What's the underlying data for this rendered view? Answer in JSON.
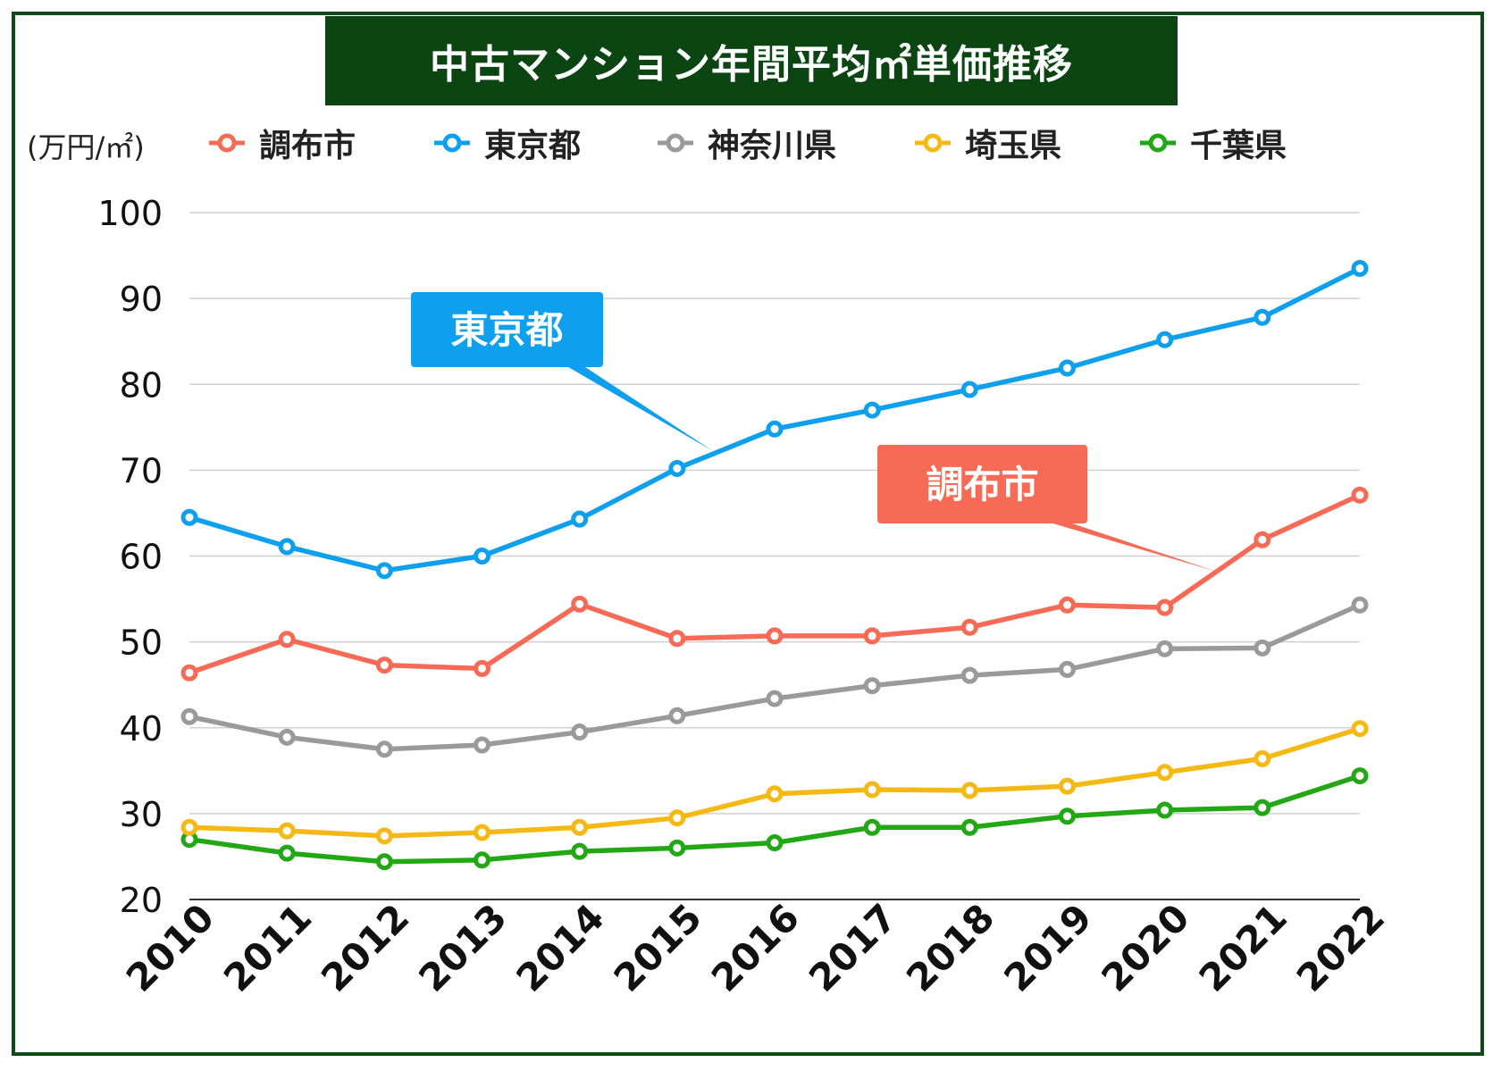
{
  "title": "中古マンション年間平均㎡単価推移",
  "unit_label": "(万円/㎡)",
  "colors": {
    "frame": "#0d4a17",
    "title_bg": "#0b4512",
    "chofu": "#f76a55",
    "tokyo": "#0ea0ec",
    "kanagawa": "#9a9a9a",
    "saitama": "#f5b915",
    "chiba": "#22a814"
  },
  "chart_data": {
    "type": "line",
    "title": "中古マンション年間平均㎡単価推移",
    "ylabel": "(万円/㎡)",
    "xlabel": "",
    "x": [
      "2010",
      "2011",
      "2012",
      "2013",
      "2014",
      "2015",
      "2016",
      "2017",
      "2018",
      "2019",
      "2020",
      "2021",
      "2022"
    ],
    "ylim": [
      20,
      100
    ],
    "yticks": [
      20,
      30,
      40,
      50,
      60,
      70,
      80,
      90,
      100
    ],
    "grid": true,
    "legend": "top",
    "series": [
      {
        "name": "調布市",
        "color": "#f76a55",
        "values": [
          46.4,
          50.3,
          47.3,
          46.9,
          54.4,
          50.4,
          50.7,
          50.7,
          51.7,
          54.3,
          54.0,
          61.9,
          67.1
        ]
      },
      {
        "name": "東京都",
        "color": "#0ea0ec",
        "values": [
          64.5,
          61.1,
          58.3,
          60.0,
          64.3,
          70.2,
          74.8,
          77.0,
          79.4,
          81.9,
          85.2,
          87.8,
          93.5
        ]
      },
      {
        "name": "神奈川県",
        "color": "#9a9a9a",
        "values": [
          41.3,
          38.9,
          37.5,
          38.0,
          39.5,
          41.4,
          43.4,
          44.9,
          46.1,
          46.8,
          49.2,
          49.3,
          54.3
        ]
      },
      {
        "name": "埼玉県",
        "color": "#f5b915",
        "values": [
          28.4,
          28.0,
          27.4,
          27.8,
          28.4,
          29.5,
          32.3,
          32.8,
          32.7,
          33.2,
          34.8,
          36.4,
          39.9
        ]
      },
      {
        "name": "千葉県",
        "color": "#22a814",
        "values": [
          27.0,
          25.4,
          24.4,
          24.6,
          25.6,
          26.0,
          26.6,
          28.4,
          28.4,
          29.7,
          30.4,
          30.7,
          34.4
        ]
      }
    ],
    "annotations": [
      {
        "text": "東京都",
        "series": "東京都",
        "color": "#0ea0ec"
      },
      {
        "text": "調布市",
        "series": "調布市",
        "color": "#f76a55"
      }
    ]
  }
}
